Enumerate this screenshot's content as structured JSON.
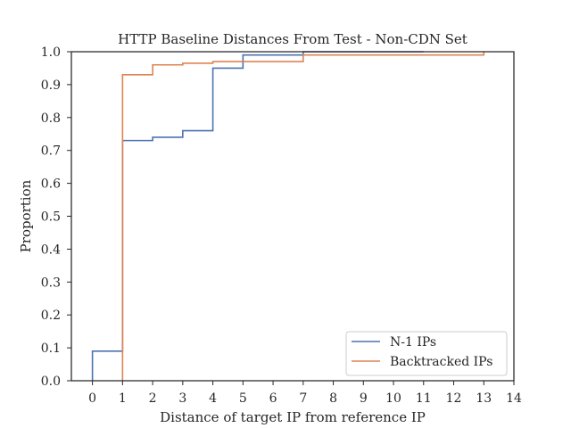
{
  "chart_data": {
    "type": "line",
    "step": true,
    "title": "HTTP Baseline Distances From Test - Non-CDN Set",
    "xlabel": "Distance of target IP from reference IP",
    "ylabel": "Proportion",
    "xlim": [
      -0.7,
      14
    ],
    "ylim": [
      0,
      1
    ],
    "xticks": [
      0,
      1,
      2,
      3,
      4,
      5,
      6,
      7,
      8,
      9,
      10,
      11,
      12,
      13,
      14
    ],
    "yticks": [
      0.0,
      0.1,
      0.2,
      0.3,
      0.4,
      0.5,
      0.6,
      0.7,
      0.8,
      0.9,
      1.0
    ],
    "ytick_labels": [
      "0.0",
      "0.1",
      "0.2",
      "0.3",
      "0.4",
      "0.5",
      "0.6",
      "0.7",
      "0.8",
      "0.9",
      "1.0"
    ],
    "grid": false,
    "legend_position": "bottom-right",
    "series": [
      {
        "name": "N-1 IPs",
        "color": "#4c72b0",
        "x": [
          0,
          0,
          1,
          1,
          2,
          2,
          3,
          3,
          4,
          4,
          5,
          5,
          7,
          7,
          11
        ],
        "y": [
          0,
          0.09,
          0.09,
          0.73,
          0.73,
          0.74,
          0.74,
          0.76,
          0.76,
          0.95,
          0.95,
          0.99,
          0.99,
          1.0,
          1.0
        ]
      },
      {
        "name": "Backtracked IPs",
        "color": "#dd8452",
        "x": [
          1,
          1,
          2,
          2,
          3,
          3,
          4,
          4,
          5,
          5,
          7,
          7,
          13,
          13
        ],
        "y": [
          0,
          0.93,
          0.93,
          0.96,
          0.96,
          0.965,
          0.965,
          0.97,
          0.97,
          0.97,
          0.97,
          0.99,
          0.99,
          1.0
        ]
      }
    ]
  }
}
